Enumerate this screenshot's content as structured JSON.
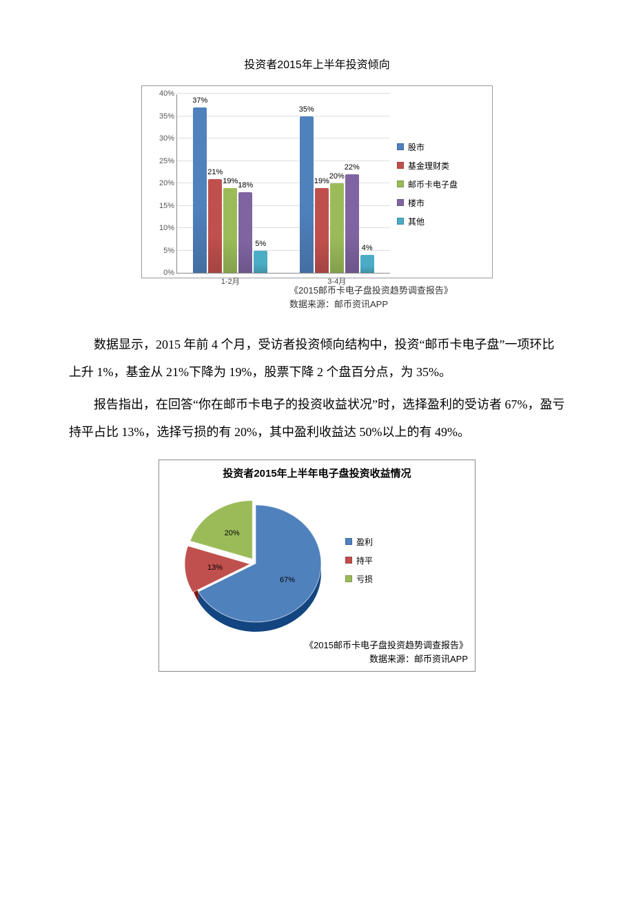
{
  "bar_chart": {
    "title": "投资者2015年上半年投资倾向",
    "type": "bar",
    "y_label_suffix": "%",
    "ylim_max": 40,
    "ytick_step": 5,
    "yticks": [
      "0%",
      "5%",
      "10%",
      "15%",
      "20%",
      "25%",
      "30%",
      "35%",
      "40%"
    ],
    "categories": [
      "1-2月",
      "3-4月"
    ],
    "series": [
      {
        "name": "股市",
        "color": "#4f81bd"
      },
      {
        "name": "基金理财类",
        "color": "#c0504d"
      },
      {
        "name": "邮币卡电子盘",
        "color": "#9bbb59"
      },
      {
        "name": "楼市",
        "color": "#8064a2"
      },
      {
        "name": "其他",
        "color": "#4bacc6"
      }
    ],
    "data": [
      [
        37,
        21,
        19,
        18,
        5
      ],
      [
        35,
        19,
        20,
        22,
        4
      ]
    ],
    "source_line1": "《2015邮币卡电子盘投资趋势调查报告》",
    "source_line2": "数据来源：邮币资讯APP",
    "grid_color": "#dddddd",
    "axis_color": "#888888"
  },
  "paragraphs": {
    "p1": "数据显示，2015 年前 4 个月，受访者投资倾向结构中，投资“邮币卡电子盘”一项环比上升 1%，基金从 21%下降为 19%，股票下降 2 个盘百分点，为 35%。",
    "p2": "报告指出，在回答“你在邮币卡电子的投资收益状况”时，选择盈利的受访者 67%，盈亏持平占比 13%，选择亏损的有 20%，其中盈利收益达 50%以上的有 49%。"
  },
  "pie_chart": {
    "title": "投资者2015年上半年电子盘投资收益情况",
    "type": "pie",
    "slices": [
      {
        "name": "盈利",
        "value": 67,
        "color": "#4f81bd"
      },
      {
        "name": "持平",
        "value": 13,
        "color": "#c0504d"
      },
      {
        "name": "亏损",
        "value": 20,
        "color": "#9bbb59"
      }
    ],
    "background_color": "#ffffff",
    "source_line1": "《2015邮币卡电子盘投资趋势调查报告》",
    "source_line2": "数据来源：邮币资讯APP"
  }
}
